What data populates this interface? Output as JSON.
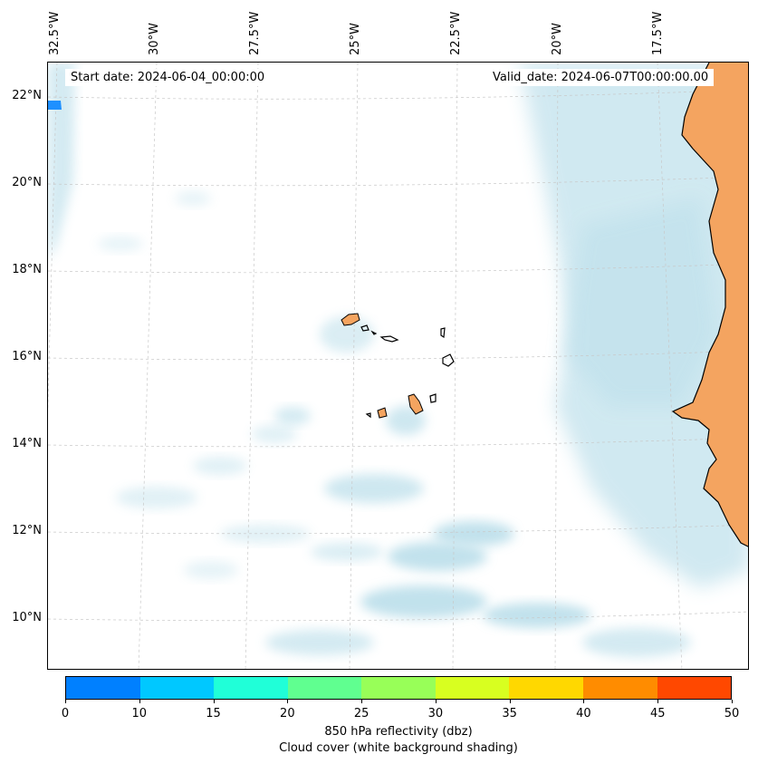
{
  "map": {
    "start_date": "Start date: 2024-06-04_00:00:00",
    "valid_date": "Valid_date: 2024-06-07T00:00:00.00",
    "lon_labels": [
      "32.5°W",
      "30°W",
      "27.5°W",
      "25°W",
      "22.5°W",
      "20°W",
      "17.5°W"
    ],
    "lat_labels": [
      "22°N",
      "20°N",
      "18°N",
      "16°N",
      "14°N",
      "12°N",
      "10°N"
    ],
    "colors": {
      "cloud": "#add8e6",
      "land_reflectivity": "#f4a460",
      "coast": "#000000",
      "grid": "#c8c8c8",
      "echo_blue": "#1e90ff"
    }
  },
  "colorbar": {
    "colors": [
      "#0080ff",
      "#00c8ff",
      "#20ffd8",
      "#60ff90",
      "#98ff58",
      "#d8ff20",
      "#ffd800",
      "#ff8c00",
      "#ff4800"
    ],
    "tick_labels": [
      "0",
      "10",
      "15",
      "20",
      "25",
      "30",
      "35",
      "40",
      "45",
      "50"
    ],
    "label": "850 hPa reflectivity (dbz)",
    "sublabel": "Cloud cover (white background shading)"
  }
}
